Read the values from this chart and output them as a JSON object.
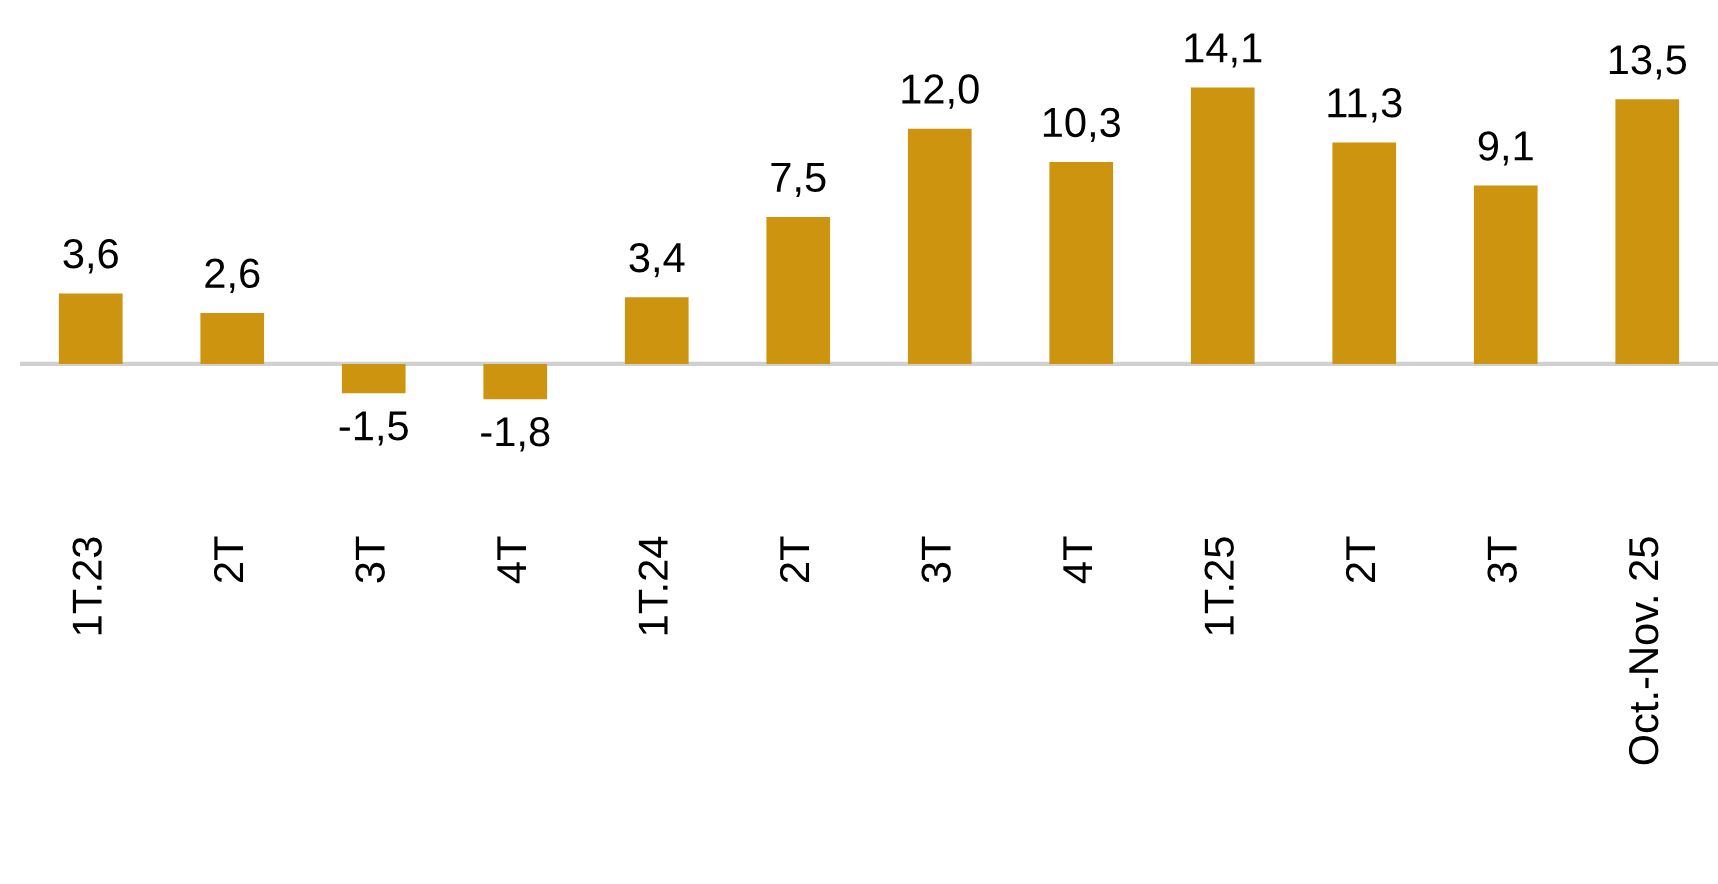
{
  "chart_data": {
    "type": "bar",
    "categories": [
      "1T.23",
      "2T",
      "3T",
      "4T",
      "1T.24",
      "2T",
      "3T",
      "4T",
      "1T.25",
      "2T",
      "3T",
      "Oct.-Nov. 25"
    ],
    "values": [
      3.6,
      2.6,
      -1.5,
      -1.8,
      3.4,
      7.5,
      12.0,
      10.3,
      14.1,
      11.3,
      9.1,
      13.5
    ],
    "value_labels": [
      "3,6",
      "2,6",
      "-1,5",
      "-1,8",
      "3,4",
      "7,5",
      "12,0",
      "10,3",
      "14,1",
      "11,3",
      "9,1",
      "13,5"
    ],
    "color": "#cc940f",
    "grid": false,
    "legend": false
  }
}
